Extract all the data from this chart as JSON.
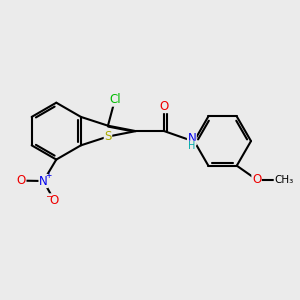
{
  "bg": "#ebebeb",
  "bond_color": "#000000",
  "bond_width": 1.5,
  "atom_colors": {
    "Cl": "#00bb00",
    "S": "#aaaa00",
    "N": "#0000ee",
    "O": "#ee0000",
    "C": "#000000"
  },
  "font_size": 8.5,
  "figsize": [
    3.0,
    3.0
  ],
  "dpi": 100
}
